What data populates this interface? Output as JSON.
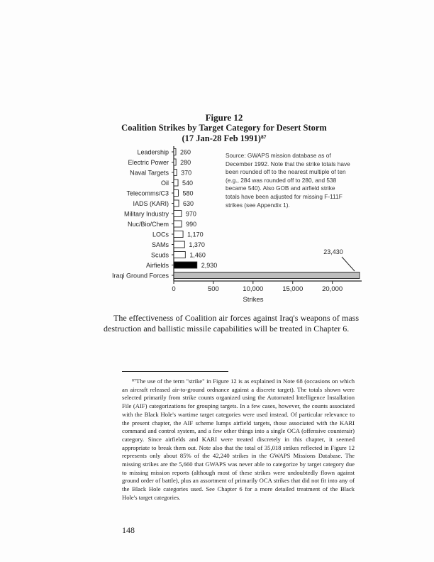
{
  "figure": {
    "number": "Figure 12",
    "title": "Coalition Strikes by Target Category for Desert Storm",
    "subtitle": "(17 Jan-28 Feb 1991)⁸⁷"
  },
  "chart_data": {
    "type": "bar",
    "orientation": "horizontal",
    "categories": [
      "Leadership",
      "Electric Power",
      "Naval Targets",
      "Oil",
      "Telecomms/C3",
      "IADS (KARI)",
      "Military Industry",
      "Nuc/Bio/Chem",
      "LOCs",
      "SAMs",
      "Scuds",
      "Airfields",
      "Iraqi Ground Forces"
    ],
    "values": [
      260,
      280,
      370,
      540,
      580,
      630,
      970,
      990,
      1170,
      1370,
      1460,
      2930,
      23430
    ],
    "value_labels": [
      "260",
      "280",
      "370",
      "540",
      "580",
      "630",
      "970",
      "990",
      "1,170",
      "1,370",
      "1,460",
      "2,930",
      "23,430"
    ],
    "xlabel": "Strikes",
    "x_tick_labels": [
      "0",
      "500",
      "10,000",
      "15,000",
      "20,000"
    ],
    "xlim": [
      0,
      25000
    ],
    "bar_colors": {
      "default": "#ffffff",
      "Airfields": "#000000",
      "Iraqi Ground Forces": "#bdbdbd"
    },
    "annotation": "Source: GWAPS mission database as of December 1992. Note that the strike totals have been rounded off to the nearest multiple of ten (e.g., 284 was rounded off to 280, and 538 became 540). Also GOB and airfield strike totals have been adjusted for missing F-111F strikes (see Appendix 1)."
  },
  "body": "The effectiveness of Coalition air forces against Iraq's weapons of mass destruction and ballistic missile capabilities will be treated in Chapter 6.",
  "footnote": "⁸⁷The use of the term \"strike\" in Figure 12 is as explained in Note 68 (occasions on which an aircraft released air-to-ground ordnance against a discrete target). The totals shown were selected primarily from strike counts organized using the Automated Intelligence Installation File (AIF) categorizations for grouping targets. In a few cases, however, the counts associated with the Black Hole's wartime target categories were used instead. Of particular relevance to the present chapter, the AIF scheme lumps airfield targets, those associated with the KARI command and control system, and a few other things into a single OCA (offensive counterair) category. Since airfields and KARI were treated discretely in this chapter, it seemed appropriate to break them out. Note also that the total of 35,018 strikes reflected in Figure 12 represents only about 85% of the 42,240 strikes in the GWAPS Missions Database. The missing strikes are the 5,660 that GWAPS was never able to categorize by target category due to missing mission reports (although most of these strikes were undoubtedly flown against ground order of battle), plus an assortment of primarily OCA strikes that did not fit into any of the Black Hole categories used. See Chapter 6 for a more detailed treatment of the Black Hole's target categories.",
  "page_number": "148"
}
